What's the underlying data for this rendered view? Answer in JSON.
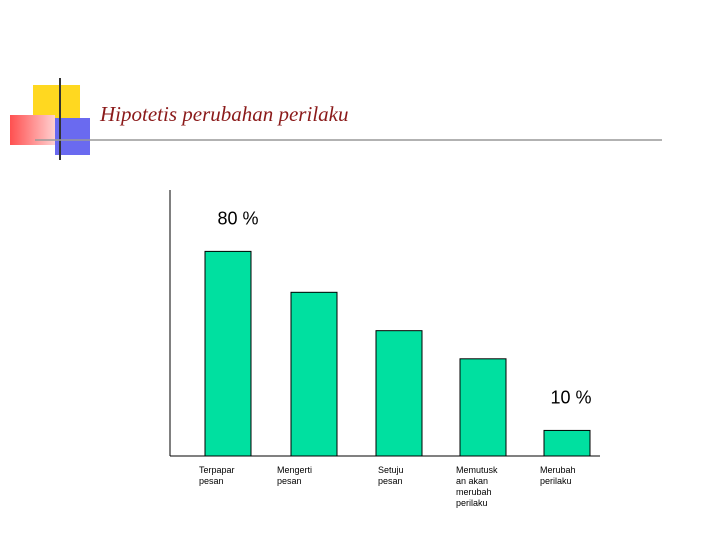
{
  "title": "Hipotetis perubahan perilaku",
  "chart_data": {
    "type": "bar",
    "categories": [
      "Terpapar\npesan",
      "Mengerti\npesan",
      "Setuju\npesan",
      "Memutusk\nan akan\nmerubah\nperilaku",
      "Merubah\nperilaku"
    ],
    "values": [
      80,
      64,
      49,
      38,
      10
    ],
    "value_labels": [
      "80 %",
      null,
      null,
      null,
      "10 %"
    ],
    "color": "#00e0a0",
    "ylim": [
      0,
      104
    ]
  }
}
